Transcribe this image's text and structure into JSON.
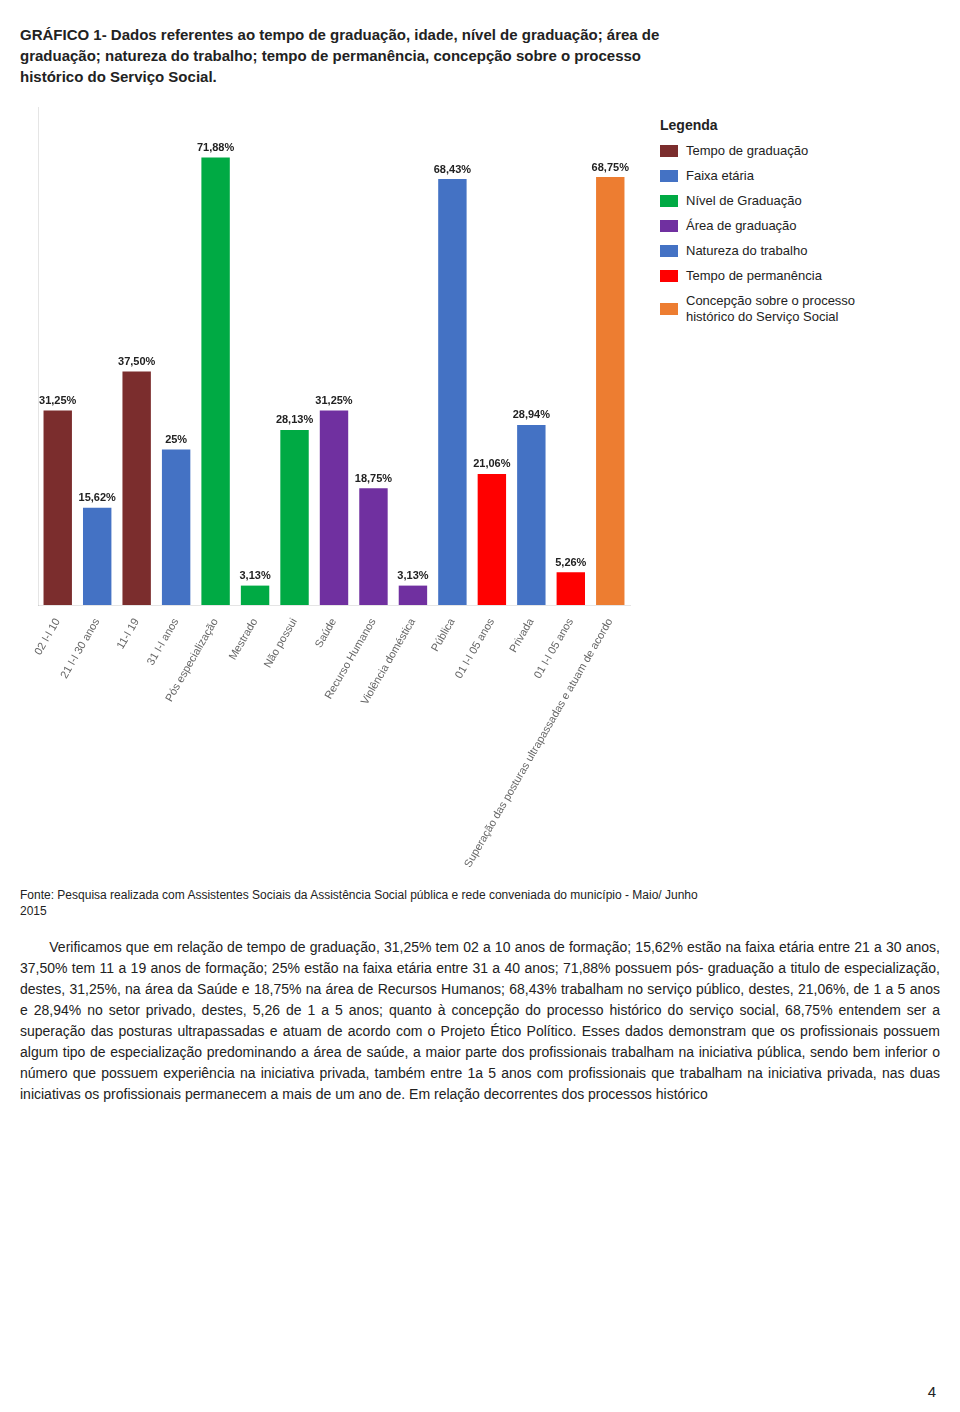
{
  "chart_data": {
    "type": "bar",
    "title": "GRÁFICO 1- Dados referentes ao tempo de graduação, idade, nível de graduação; área de\ngraduação; natureza do trabalho; tempo de permanência, concepção sobre o processo\nhistórico do Serviço Social.",
    "categories": [
      "02 I-I 10",
      "21 I-I 30 anos",
      "11-I 19",
      "31 I-I anos",
      "Pós especialização",
      "Mestrado",
      "Não possui",
      "Saúde",
      "Recurso Humanos",
      "Violência doméstica",
      "Pública",
      "01 I-I 05 anos",
      "Privada",
      "01 I-I 05 anos",
      "Superação das posturas ultrapassadas e atuam de acordo"
    ],
    "series": [
      {
        "name": "Tempo de graduação",
        "color": "#7B2D2D",
        "values": [
          31.25,
          null,
          37.5,
          null,
          null,
          null,
          null,
          null,
          null,
          null,
          null,
          null,
          null,
          null,
          null
        ],
        "value_labels": [
          "31,25%",
          null,
          "37,50%",
          null,
          null,
          null,
          null,
          null,
          null,
          null,
          null,
          null,
          null,
          null,
          null
        ]
      },
      {
        "name": "Faixa etária",
        "color": "#4472C4",
        "values": [
          null,
          15.62,
          null,
          25.0,
          null,
          null,
          null,
          null,
          null,
          null,
          null,
          null,
          null,
          null,
          null
        ],
        "value_labels": [
          null,
          "15,62%",
          null,
          "25%",
          null,
          null,
          null,
          null,
          null,
          null,
          null,
          null,
          null,
          null,
          null
        ]
      },
      {
        "name": "Nível de Graduação",
        "color": "#00AA44",
        "values": [
          null,
          null,
          null,
          null,
          71.88,
          3.13,
          28.13,
          null,
          null,
          null,
          null,
          null,
          null,
          null,
          null
        ],
        "value_labels": [
          null,
          null,
          null,
          null,
          "71,88%",
          "3,13%",
          "28,13%",
          null,
          null,
          null,
          null,
          null,
          null,
          null,
          null
        ]
      },
      {
        "name": "Área de graduação",
        "color": "#7030A0",
        "values": [
          null,
          null,
          null,
          null,
          null,
          null,
          null,
          31.25,
          18.75,
          3.13,
          null,
          null,
          null,
          null,
          null
        ],
        "value_labels": [
          null,
          null,
          null,
          null,
          null,
          null,
          null,
          "31,25%",
          "18,75%",
          "3,13%",
          null,
          null,
          null,
          null,
          null
        ]
      },
      {
        "name": "Natureza do trabalho",
        "color": "#4472C4",
        "values": [
          null,
          null,
          null,
          null,
          null,
          null,
          null,
          null,
          null,
          null,
          68.43,
          null,
          28.94,
          null,
          null
        ],
        "value_labels": [
          null,
          null,
          null,
          null,
          null,
          null,
          null,
          null,
          null,
          null,
          "68,43%",
          null,
          "28,94%",
          null,
          null
        ]
      },
      {
        "name": "Tempo de permanência",
        "color": "#FF0000",
        "values": [
          null,
          null,
          null,
          null,
          null,
          null,
          null,
          null,
          null,
          null,
          null,
          21.06,
          null,
          5.26,
          null
        ],
        "value_labels": [
          null,
          null,
          null,
          null,
          null,
          null,
          null,
          null,
          null,
          null,
          null,
          "21,06%",
          null,
          "5,26%",
          null
        ]
      },
      {
        "name": "Concepção sobre o processo\nhistórico do Serviço Social",
        "color": "#ED7D31",
        "values": [
          null,
          null,
          null,
          null,
          null,
          null,
          null,
          null,
          null,
          null,
          null,
          null,
          null,
          null,
          68.75
        ],
        "value_labels": [
          null,
          null,
          null,
          null,
          null,
          null,
          null,
          null,
          null,
          null,
          null,
          null,
          null,
          null,
          "68,75%"
        ]
      }
    ],
    "ylim": [
      0,
      80
    ],
    "tick_labels": "x",
    "grid": false,
    "data_labels": true,
    "legend": "right",
    "legend_title": "Legenda",
    "source": "Fonte: Pesquisa realizada com Assistentes Sociais da Assistência Social pública e rede conveniada do município - Maio/ Junho\n2015",
    "body_text": "       Verificamos que em relação de tempo de graduação, 31,25% tem 02 a 10 anos de formação; 15,62% estão na faixa etária entre 21 a 30 anos, 37,50% tem 11 a 19 anos de formação; 25% estão na faixa etária entre 31 a 40 anos; 71,88% possuem pós- graduação a titulo de especialização, destes, 31,25%, na área da Saúde e 18,75% na área de Recursos Humanos; 68,43% trabalham no serviço público, destes, 21,06%, de 1 a 5 anos e 28,94% no setor privado, destes, 5,26 de 1 a 5 anos; quanto à concepção do processo histórico do serviço social, 68,75% entendem ser a superação das posturas ultrapassadas e atuam de acordo com o Projeto Ético Político. Esses dados demonstram que os profissionais possuem algum tipo de especialização predominando a área de saúde, a maior parte dos profissionais trabalham na iniciativa pública, sendo bem inferior o número que possuem experiência na iniciativa privada, também entre 1a 5 anos com profissionais que trabalham na iniciativa privada, nas duas iniciativas os profissionais permanecem a mais de um ano de. Em relação decorrentes dos processos histórico",
    "page_number": "4"
  }
}
